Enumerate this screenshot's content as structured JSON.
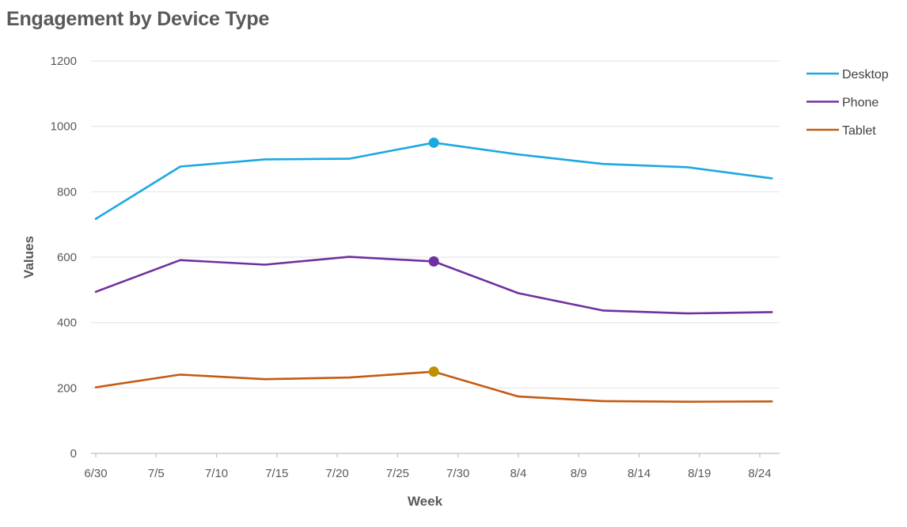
{
  "chart_data": {
    "type": "line",
    "title": "Engagement by Device Type",
    "xlabel": "Week",
    "ylabel": "Values",
    "x_ticks": [
      "6/30",
      "7/5",
      "7/10",
      "7/15",
      "7/20",
      "7/25",
      "7/30",
      "8/4",
      "8/9",
      "8/14",
      "8/19",
      "8/24"
    ],
    "x": [
      "6/30",
      "7/7",
      "7/14",
      "7/21",
      "7/28",
      "8/4",
      "8/11",
      "8/18",
      "8/25"
    ],
    "ylim": [
      0,
      1200
    ],
    "y_ticks": [
      0,
      200,
      400,
      600,
      800,
      1000,
      1200
    ],
    "grid": true,
    "legend_position": "right",
    "highlight_x": "7/28",
    "series": [
      {
        "name": "Desktop",
        "color": "#1CA8E0",
        "marker_color": "#1CA8E0",
        "values": [
          717,
          877,
          899,
          901,
          950,
          914,
          885,
          875,
          841
        ]
      },
      {
        "name": "Phone",
        "color": "#7030A0",
        "marker_color": "#7030A0",
        "values": [
          494,
          591,
          577,
          601,
          587,
          490,
          437,
          428,
          432
        ]
      },
      {
        "name": "Tablet",
        "color": "#C55A11",
        "marker_color": "#BF9000",
        "values": [
          202,
          241,
          227,
          232,
          250,
          174,
          160,
          158,
          159
        ]
      }
    ]
  }
}
